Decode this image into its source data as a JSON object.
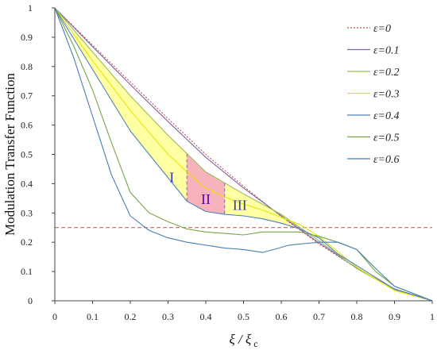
{
  "chart_data": {
    "type": "line",
    "xlabel": "ξ / ξ",
    "xlabel_sub": "c",
    "ylabel": "Modulation Transfer Function",
    "xlim": [
      0,
      1
    ],
    "ylim": [
      0,
      1
    ],
    "xticks": [
      "0",
      "0.1",
      "0.2",
      "0.3",
      "0.4",
      "0.5",
      "0.6",
      "0.7",
      "0.8",
      "0.9",
      "1"
    ],
    "yticks": [
      "0",
      "0.1",
      "0.2",
      "0.3",
      "0.4",
      "0.5",
      "0.6",
      "0.7",
      "0.8",
      "0.9",
      "1"
    ],
    "grid": false,
    "legend_position": "top-right",
    "threshold": {
      "y": 0.25,
      "color": "#c0504d",
      "style": "dashed"
    },
    "shaded_regions": [
      {
        "label": "I",
        "color": "#ffff66",
        "x_range": [
          0.05,
          0.35
        ],
        "label_color": "#3a3aa0"
      },
      {
        "label": "II",
        "color": "#f4a6b0",
        "x_range": [
          0.35,
          0.45
        ],
        "label_color": "#5b00b5"
      },
      {
        "label": "III",
        "color": "#ffff66",
        "x_range": [
          0.45,
          0.64
        ],
        "label_color": "#3a3aa0"
      }
    ],
    "series": [
      {
        "name": "ε=0",
        "color": "#c0504d",
        "dash": "2,2",
        "x": [
          0,
          0.1,
          0.2,
          0.3,
          0.4,
          0.5,
          0.6,
          0.7,
          0.8,
          0.9,
          1
        ],
        "y": [
          1,
          0.873,
          0.747,
          0.622,
          0.5,
          0.391,
          0.288,
          0.194,
          0.111,
          0.041,
          0
        ]
      },
      {
        "name": "ε=0.1",
        "color": "#8064a2",
        "dash": "",
        "x": [
          0,
          0.1,
          0.2,
          0.3,
          0.4,
          0.5,
          0.6,
          0.7,
          0.8,
          0.9,
          1
        ],
        "y": [
          1,
          0.868,
          0.738,
          0.612,
          0.49,
          0.385,
          0.29,
          0.198,
          0.112,
          0.04,
          0
        ]
      },
      {
        "name": "ε=0.2",
        "color": "#9bbb59",
        "dash": "",
        "x": [
          0,
          0.1,
          0.2,
          0.3,
          0.4,
          0.5,
          0.6,
          0.7,
          0.8,
          0.9,
          1
        ],
        "y": [
          1,
          0.85,
          0.7,
          0.565,
          0.44,
          0.365,
          0.295,
          0.205,
          0.11,
          0.038,
          0
        ]
      },
      {
        "name": "ε=0.3",
        "color": "#e6e600",
        "dash": "",
        "x": [
          0,
          0.1,
          0.2,
          0.3,
          0.35,
          0.4,
          0.45,
          0.5,
          0.55,
          0.6,
          0.65,
          0.7,
          0.8,
          0.9,
          1
        ],
        "y": [
          1,
          0.82,
          0.65,
          0.5,
          0.44,
          0.385,
          0.355,
          0.33,
          0.31,
          0.285,
          0.26,
          0.22,
          0.115,
          0.035,
          0
        ]
      },
      {
        "name": "ε=0.4",
        "color": "#4f81bd",
        "dash": "",
        "x": [
          0,
          0.1,
          0.2,
          0.3,
          0.35,
          0.4,
          0.45,
          0.5,
          0.55,
          0.6,
          0.65,
          0.7,
          0.75,
          0.8,
          0.9,
          1
        ],
        "y": [
          1,
          0.79,
          0.58,
          0.42,
          0.34,
          0.305,
          0.295,
          0.29,
          0.28,
          0.265,
          0.245,
          0.215,
          0.16,
          0.12,
          0.04,
          0
        ]
      },
      {
        "name": "ε=0.5",
        "color": "#77a646",
        "dash": "",
        "x": [
          0,
          0.05,
          0.1,
          0.15,
          0.2,
          0.25,
          0.3,
          0.35,
          0.4,
          0.45,
          0.5,
          0.55,
          0.6,
          0.65,
          0.7,
          0.75,
          0.8,
          0.85,
          0.9,
          1
        ],
        "y": [
          1,
          0.87,
          0.72,
          0.54,
          0.37,
          0.3,
          0.27,
          0.245,
          0.235,
          0.23,
          0.225,
          0.235,
          0.235,
          0.235,
          0.22,
          0.2,
          0.175,
          0.1,
          0.05,
          0
        ]
      },
      {
        "name": "ε=0.6",
        "color": "#4a7eb5",
        "dash": "",
        "x": [
          0,
          0.05,
          0.1,
          0.15,
          0.2,
          0.25,
          0.3,
          0.35,
          0.4,
          0.45,
          0.5,
          0.55,
          0.58,
          0.62,
          0.66,
          0.7,
          0.75,
          0.8,
          0.85,
          0.9,
          1
        ],
        "y": [
          1,
          0.83,
          0.63,
          0.43,
          0.29,
          0.24,
          0.215,
          0.2,
          0.19,
          0.18,
          0.175,
          0.165,
          0.175,
          0.19,
          0.195,
          0.2,
          0.2,
          0.175,
          0.11,
          0.05,
          0
        ]
      }
    ]
  }
}
